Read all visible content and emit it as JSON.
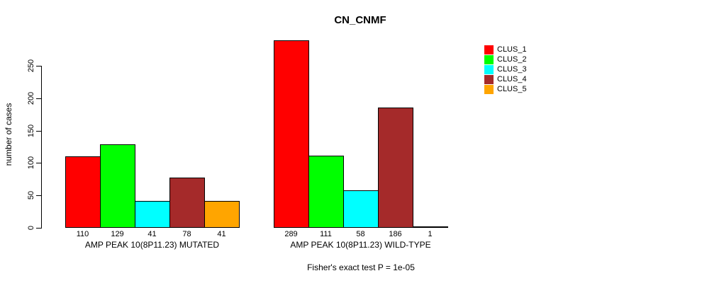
{
  "chart_data": {
    "type": "bar",
    "title": "CN_CNMF",
    "ylabel": "number of cases",
    "yticks": [
      0,
      50,
      100,
      150,
      200,
      250
    ],
    "ylim": [
      0,
      295
    ],
    "grid": false,
    "legend_position": "right",
    "series": [
      {
        "name": "CLUS_1",
        "color": "#FF0000"
      },
      {
        "name": "CLUS_2",
        "color": "#00FF00"
      },
      {
        "name": "CLUS_3",
        "color": "#00FFFF"
      },
      {
        "name": "CLUS_4",
        "color": "#A52A2A"
      },
      {
        "name": "CLUS_5",
        "color": "#FFA500"
      }
    ],
    "groups": [
      {
        "label": "AMP PEAK 10(8P11.23) MUTATED",
        "values": [
          110,
          129,
          41,
          78,
          41
        ]
      },
      {
        "label": "AMP PEAK 10(8P11.23) WILD-TYPE",
        "values": [
          289,
          111,
          58,
          186,
          1
        ]
      }
    ],
    "caption": "Fisher's exact test P = 1e-05"
  }
}
